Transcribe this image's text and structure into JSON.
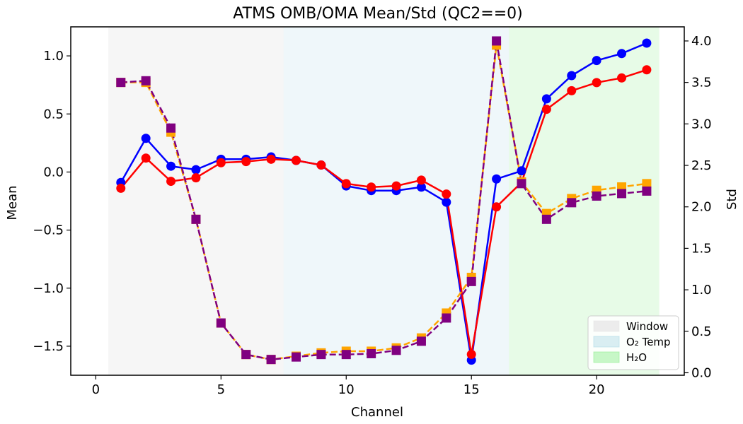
{
  "chart_data": {
    "type": "line",
    "title": "ATMS OMB/OMA Mean/Std (QC2==0)",
    "xlabel": "Channel",
    "ylabel": "Mean",
    "y2label": "Std",
    "xlim": [
      -1,
      23.5
    ],
    "ylim": [
      -1.75,
      1.25
    ],
    "y2lim": [
      -0.03,
      4.17
    ],
    "xticks": [
      0,
      5,
      10,
      15,
      20
    ],
    "yticks": [
      -1.5,
      -1.0,
      -0.5,
      0.0,
      0.5,
      1.0
    ],
    "y2ticks": [
      0.0,
      0.5,
      1.0,
      1.5,
      2.0,
      2.5,
      3.0,
      3.5,
      4.0
    ],
    "xtick_labels": [
      "0",
      "5",
      "10",
      "15",
      "20"
    ],
    "ytick_labels": [
      "−1.5",
      "−1.0",
      "−0.5",
      "0.0",
      "0.5",
      "1.0"
    ],
    "y2tick_labels": [
      "0.0",
      "0.5",
      "1.0",
      "1.5",
      "2.0",
      "2.5",
      "3.0",
      "3.5",
      "4.0"
    ],
    "x": [
      1,
      2,
      3,
      4,
      5,
      6,
      7,
      8,
      9,
      10,
      11,
      12,
      13,
      14,
      15,
      16,
      17,
      18,
      19,
      20,
      21,
      22
    ],
    "series": [
      {
        "axis": "left",
        "color": "#0000ff",
        "marker": "circle",
        "linestyle": "solid",
        "values": [
          -0.09,
          0.29,
          0.05,
          0.02,
          0.11,
          0.11,
          0.13,
          0.1,
          0.06,
          -0.12,
          -0.16,
          -0.16,
          -0.13,
          -0.26,
          -1.62,
          -0.06,
          0.01,
          0.63,
          0.83,
          0.96,
          1.02,
          1.11
        ]
      },
      {
        "axis": "left",
        "color": "#ff0000",
        "marker": "circle",
        "linestyle": "solid",
        "values": [
          -0.14,
          0.12,
          -0.08,
          -0.05,
          0.08,
          0.09,
          0.11,
          0.1,
          0.06,
          -0.1,
          -0.13,
          -0.12,
          -0.07,
          -0.19,
          -1.57,
          -0.3,
          -0.09,
          0.54,
          0.7,
          0.77,
          0.81,
          0.88
        ]
      },
      {
        "axis": "right",
        "color": "#ffa500",
        "marker": "square",
        "linestyle": "dashed",
        "values": [
          3.5,
          3.5,
          2.9,
          1.85,
          0.6,
          0.22,
          0.16,
          0.2,
          0.24,
          0.26,
          0.26,
          0.3,
          0.42,
          0.72,
          1.15,
          3.95,
          2.3,
          1.92,
          2.1,
          2.2,
          2.24,
          2.28
        ]
      },
      {
        "axis": "right",
        "color": "#800080",
        "marker": "square",
        "linestyle": "dashed",
        "values": [
          3.5,
          3.52,
          2.95,
          1.85,
          0.6,
          0.22,
          0.16,
          0.19,
          0.22,
          0.22,
          0.23,
          0.27,
          0.38,
          0.66,
          1.1,
          4.0,
          2.28,
          1.85,
          2.05,
          2.13,
          2.16,
          2.19
        ]
      }
    ],
    "shaded_regions": [
      {
        "name": "Window",
        "x0": 0.5,
        "x1": 7.5,
        "color": "#e6e6e6",
        "opacity": 0.35
      },
      {
        "name": "O₂ Temp",
        "x0": 7.5,
        "x1": 16.5,
        "color": "#add8e6",
        "opacity": 0.2
      },
      {
        "name": "H₂O",
        "x0": 16.5,
        "x1": 22.5,
        "color": "#90ee90",
        "opacity": 0.22
      }
    ],
    "legend_placement": "lower-right",
    "grid": false
  }
}
